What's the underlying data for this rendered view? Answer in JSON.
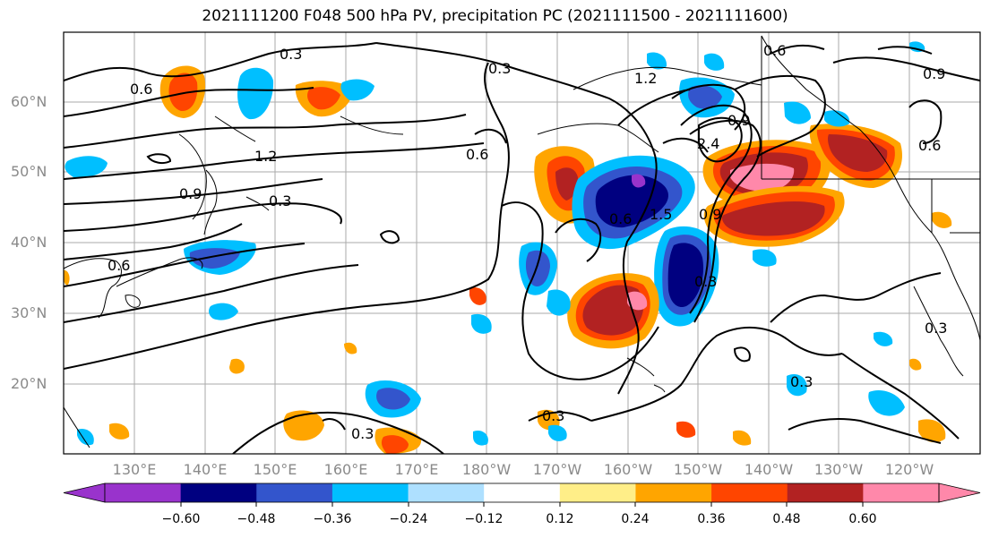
{
  "title": "2021111200 F048 500 hPa PV, precipitation PC (2021111500 - 2021111600)",
  "lat_labels": [
    "60°N",
    "50°N",
    "40°N",
    "30°N",
    "20°N"
  ],
  "lon_labels": [
    "130°E",
    "140°E",
    "150°E",
    "160°E",
    "170°E",
    "180°W",
    "170°W",
    "160°W",
    "150°W",
    "140°W",
    "130°W",
    "120°W"
  ],
  "contour_labels": [
    "0.6",
    "0.3",
    "1.2",
    "0.6",
    "0.9",
    "1.2",
    "0.9",
    "0.3",
    "0.6",
    "0.6",
    "1.5",
    "0.9",
    "2.4",
    "0.3",
    "0.3",
    "0.6",
    "0.3",
    "0.3",
    "0.3",
    "0.3",
    "0.9",
    "0.6"
  ],
  "colorbar": {
    "ticks": [
      "−0.60",
      "−0.48",
      "−0.36",
      "−0.24",
      "−0.12",
      "0.12",
      "0.24",
      "0.36",
      "0.48",
      "0.60"
    ],
    "colors": [
      "#9933cc",
      "#000080",
      "#3355cc",
      "#00bfff",
      "#aee0ff",
      "#ffffff",
      "#ffee88",
      "#ffa500",
      "#ff4500",
      "#b22222",
      "#ff88aa",
      "#ff88aa"
    ]
  }
}
